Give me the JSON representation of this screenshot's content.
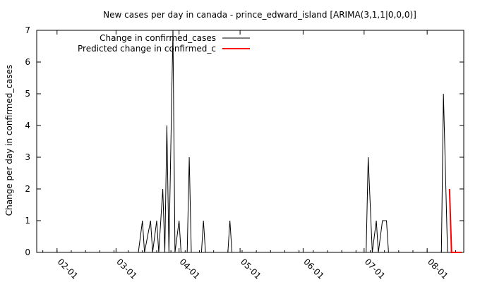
{
  "chart_data": {
    "type": "line",
    "title": "New cases per day in canada - prince_edward_island [ARIMA(3,1,1|0,0,0)]",
    "xlabel": "",
    "ylabel": "Change per day in confirmed_cases",
    "x_range": [
      "2020-01-22",
      "2020-08-19"
    ],
    "ylim": [
      0,
      7
    ],
    "y_ticks": [
      0,
      1,
      2,
      3,
      4,
      5,
      6,
      7
    ],
    "x_ticks": [
      {
        "date": "2020-02-01",
        "label": "02-01"
      },
      {
        "date": "2020-03-01",
        "label": "03-01"
      },
      {
        "date": "2020-04-01",
        "label": "04-01"
      },
      {
        "date": "2020-05-01",
        "label": "05-01"
      },
      {
        "date": "2020-06-01",
        "label": "06-01"
      },
      {
        "date": "2020-07-01",
        "label": "07-01"
      },
      {
        "date": "2020-08-01",
        "label": "08-01"
      }
    ],
    "grid": false,
    "legend_position": "top-left",
    "series": [
      {
        "name": "Change in confirmed_cases",
        "color": "#000000",
        "points": [
          [
            "2020-03-12",
            0
          ],
          [
            "2020-03-14",
            1
          ],
          [
            "2020-03-15",
            0
          ],
          [
            "2020-03-18",
            1
          ],
          [
            "2020-03-19",
            0
          ],
          [
            "2020-03-21",
            1
          ],
          [
            "2020-03-22",
            0
          ],
          [
            "2020-03-24",
            2
          ],
          [
            "2020-03-25",
            0
          ],
          [
            "2020-03-26",
            4
          ],
          [
            "2020-03-27",
            0
          ],
          [
            "2020-03-29",
            7
          ],
          [
            "2020-03-30",
            0
          ],
          [
            "2020-04-01",
            1
          ],
          [
            "2020-04-02",
            0
          ],
          [
            "2020-04-05",
            0
          ],
          [
            "2020-04-06",
            3
          ],
          [
            "2020-04-07",
            0
          ],
          [
            "2020-04-12",
            0
          ],
          [
            "2020-04-13",
            1
          ],
          [
            "2020-04-14",
            0
          ],
          [
            "2020-04-25",
            0
          ],
          [
            "2020-04-26",
            1
          ],
          [
            "2020-04-27",
            0
          ],
          [
            "2020-07-02",
            0
          ],
          [
            "2020-07-03",
            3
          ],
          [
            "2020-07-05",
            0
          ],
          [
            "2020-07-07",
            1
          ],
          [
            "2020-07-08",
            0
          ],
          [
            "2020-07-10",
            1
          ],
          [
            "2020-07-12",
            1
          ],
          [
            "2020-07-13",
            0
          ],
          [
            "2020-08-08",
            0
          ],
          [
            "2020-08-09",
            5
          ],
          [
            "2020-08-11",
            0
          ],
          [
            "2020-08-12",
            0
          ]
        ]
      },
      {
        "name": "Predicted change in confirmed_c",
        "color": "#ff0000",
        "points": [
          [
            "2020-08-12",
            2
          ],
          [
            "2020-08-13",
            0
          ],
          [
            "2020-08-14",
            0
          ],
          [
            "2020-08-15",
            0
          ],
          [
            "2020-08-16",
            0
          ],
          [
            "2020-08-17",
            0
          ],
          [
            "2020-08-18",
            0
          ]
        ]
      }
    ]
  }
}
